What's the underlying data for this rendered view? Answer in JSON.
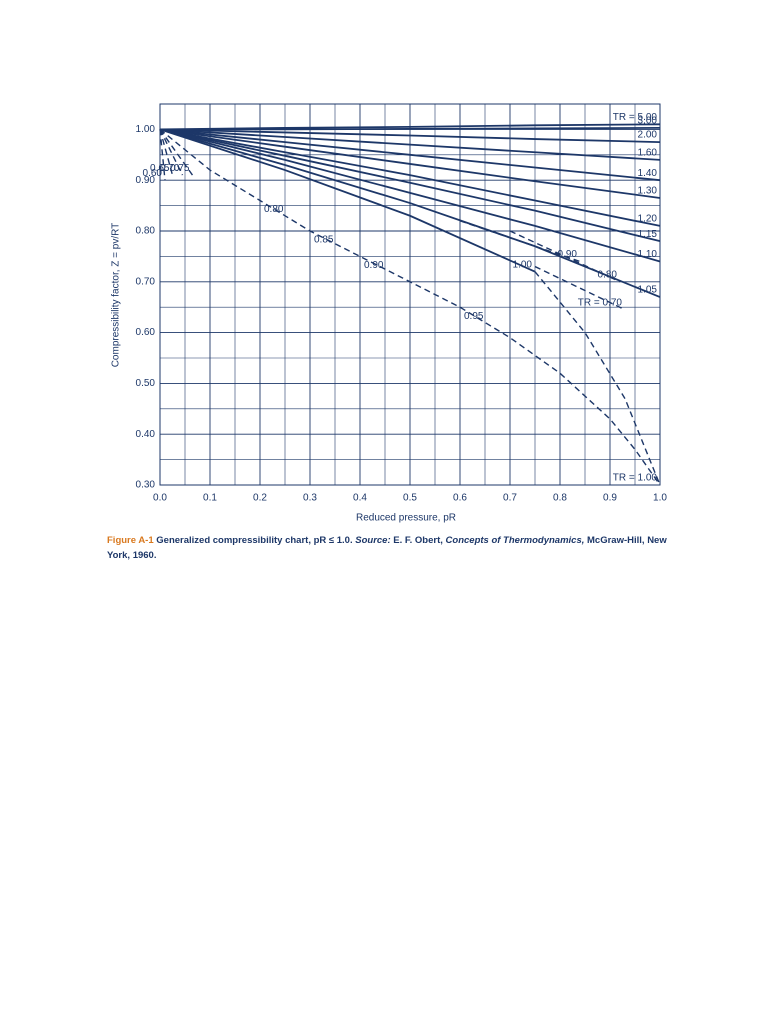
{
  "chart_data": {
    "type": "line",
    "y_label": "Compressibility factor, Z = pv/RT",
    "x_label": "Reduced pressure, pR",
    "xlim": [
      0,
      1.0
    ],
    "ylim": [
      0.3,
      1.05
    ],
    "xticks": [
      {
        "value": 0,
        "label": "0.0"
      },
      0.1,
      0.2,
      0.3,
      0.4,
      0.5,
      0.6,
      0.7,
      0.8,
      0.9,
      {
        "value": 1.0,
        "label": "1.0"
      }
    ],
    "yticks": [
      {
        "value": 0.3,
        "label": "0.30"
      },
      {
        "value": 0.4,
        "label": "0.40"
      },
      {
        "value": 0.5,
        "label": "0.50"
      },
      {
        "value": 0.6,
        "label": "0.60"
      },
      {
        "value": 0.7,
        "label": "0.70"
      },
      {
        "value": 0.8,
        "label": "0.80"
      },
      {
        "value": 0.9,
        "label": "0.90"
      },
      {
        "value": 1.0,
        "label": "1.00"
      }
    ],
    "grid": true,
    "minor_grid": true,
    "color": "#1d3768",
    "series": [
      {
        "name": "TR = 5.00",
        "style": "solid",
        "x": [
          0,
          0.25,
          0.5,
          0.75,
          1.0
        ],
        "values": [
          1.0,
          1.003,
          1.005,
          1.008,
          1.01
        ]
      },
      {
        "name": "3.00",
        "style": "solid",
        "x": [
          0,
          0.25,
          0.5,
          0.75,
          1.0
        ],
        "values": [
          1.0,
          1.0,
          1.001,
          1.002,
          1.003
        ]
      },
      {
        "name": "2.00",
        "style": "solid",
        "x": [
          0,
          0.25,
          0.5,
          0.75,
          1.0
        ],
        "values": [
          1.0,
          0.994,
          0.988,
          0.981,
          0.975
        ]
      },
      {
        "name": "1.60",
        "style": "solid",
        "x": [
          0,
          0.25,
          0.5,
          0.75,
          1.0
        ],
        "values": [
          1.0,
          0.985,
          0.97,
          0.955,
          0.94
        ]
      },
      {
        "name": "1.40",
        "style": "solid",
        "x": [
          0,
          0.25,
          0.5,
          0.75,
          1.0
        ],
        "values": [
          1.0,
          0.975,
          0.95,
          0.925,
          0.9
        ]
      },
      {
        "name": "1.30",
        "style": "solid",
        "x": [
          0,
          0.25,
          0.5,
          0.75,
          1.0
        ],
        "values": [
          1.0,
          0.966,
          0.932,
          0.898,
          0.865
        ]
      },
      {
        "name": "1.20",
        "style": "solid",
        "x": [
          0,
          0.25,
          0.5,
          0.75,
          1.0
        ],
        "values": [
          1.0,
          0.955,
          0.91,
          0.86,
          0.81
        ]
      },
      {
        "name": "1.15",
        "style": "solid",
        "x": [
          0,
          0.25,
          0.5,
          0.75,
          1.0
        ],
        "values": [
          1.0,
          0.948,
          0.895,
          0.84,
          0.78
        ]
      },
      {
        "name": "1.10",
        "style": "solid",
        "x": [
          0,
          0.25,
          0.5,
          0.75,
          1.0
        ],
        "values": [
          1.0,
          0.94,
          0.875,
          0.81,
          0.74
        ]
      },
      {
        "name": "1.05",
        "style": "solid",
        "x": [
          0,
          0.25,
          0.5,
          0.75,
          1.0
        ],
        "values": [
          1.0,
          0.93,
          0.855,
          0.77,
          0.67
        ]
      },
      {
        "name": "1.00",
        "style": "solid",
        "x": [
          0,
          0.25,
          0.5,
          0.75
        ],
        "values": [
          1.0,
          0.92,
          0.83,
          0.72
        ]
      },
      {
        "name": "TR = 1.00",
        "style": "dashed",
        "x": [
          0.75,
          0.85,
          0.93,
          1.0
        ],
        "values": [
          0.72,
          0.6,
          0.47,
          0.3
        ]
      },
      {
        "name": "0.90",
        "style": "dashed",
        "x": [
          0.6,
          0.84
        ],
        "values": [
          0.82,
          0.74
        ]
      },
      {
        "name": "0.80",
        "style": "dashed",
        "x": [
          0.7,
          0.92
        ],
        "values": [
          0.8,
          0.7
        ]
      },
      {
        "name": "TR = 0.70",
        "style": "dashed",
        "x": [
          0.75,
          0.93
        ],
        "values": [
          0.73,
          0.645
        ]
      },
      {
        "name": "0.60",
        "style": "dashed",
        "x": [
          0,
          0.01
        ],
        "values": [
          1.0,
          0.9
        ]
      },
      {
        "name": "0.65",
        "style": "dashed",
        "x": [
          0,
          0.025
        ],
        "values": [
          1.0,
          0.91
        ]
      },
      {
        "name": "0.70",
        "style": "dashed",
        "x": [
          0,
          0.045
        ],
        "values": [
          1.0,
          0.91
        ]
      },
      {
        "name": "0.75",
        "style": "dashed",
        "x": [
          0,
          0.065
        ],
        "values": [
          1.0,
          0.91
        ]
      },
      {
        "style": "dashed",
        "x": [
          0,
          0.1,
          0.2,
          0.3,
          0.4,
          0.5,
          0.6,
          0.7,
          0.8,
          0.9,
          0.95,
          1.0
        ],
        "values": [
          1.0,
          0.92,
          0.86,
          0.8,
          0.75,
          0.7,
          0.65,
          0.59,
          0.52,
          0.43,
          0.37,
          0.3
        ],
        "point_labels": [
          null,
          null,
          "0.80",
          "0.85",
          "0.90",
          null,
          "0.95",
          null,
          null,
          null,
          null,
          null
        ]
      }
    ],
    "caption": {
      "label": "Figure A-1",
      "text": "Generalized compressibility chart, pR ≤ 1.0.",
      "source_label": "Source:",
      "source": "E. F. Obert,",
      "book": "Concepts of Thermodynamics,",
      "publisher": "McGraw-Hill, New York, 1960."
    }
  }
}
